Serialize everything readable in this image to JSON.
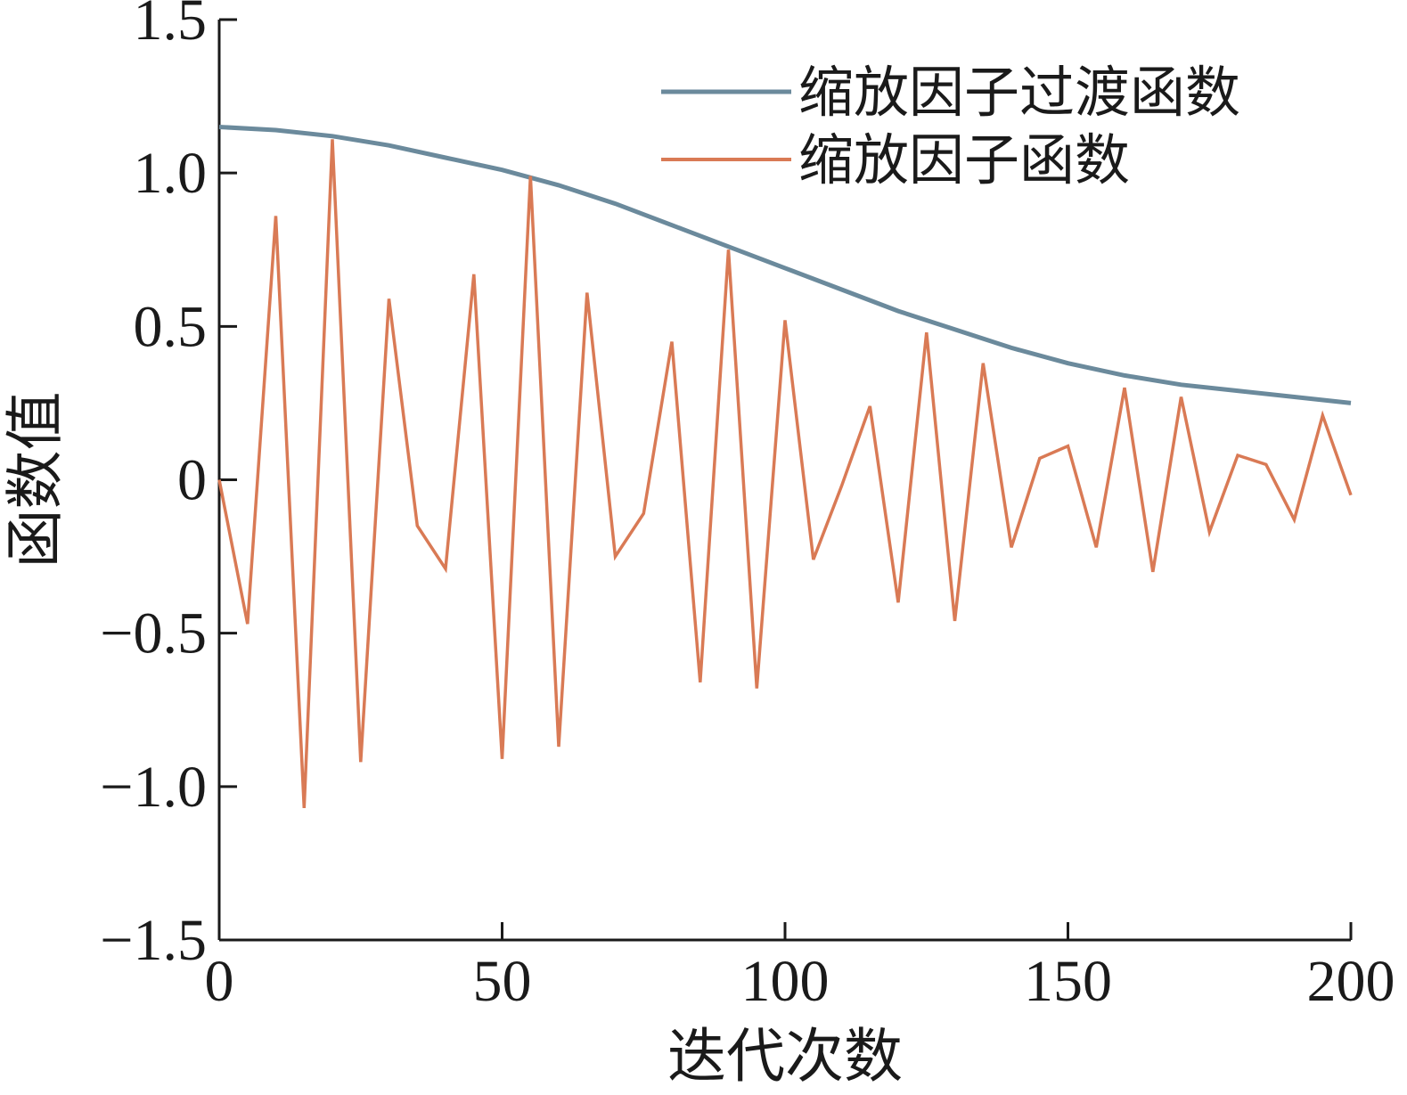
{
  "chart_data": {
    "type": "line",
    "title": "",
    "xlabel": "迭代次数",
    "ylabel": "函数值",
    "xlim": [
      0,
      200
    ],
    "ylim": [
      -1.5,
      1.5
    ],
    "xticks": [
      0,
      50,
      100,
      150,
      200
    ],
    "xtick_labels": [
      "0",
      "50",
      "100",
      "150",
      "200"
    ],
    "yticks": [
      1.5,
      1.0,
      0.5,
      0,
      -0.5,
      -1.0,
      -1.5
    ],
    "ytick_labels": [
      "1.5",
      "1.0",
      "0.5",
      "0",
      "−0.5",
      "−1.0",
      "−1.5"
    ],
    "grid": false,
    "legend_position": "top-right",
    "series": [
      {
        "name": "缩放因子过渡函数",
        "color": "#6b8a9c",
        "x": [
          0,
          10,
          20,
          30,
          40,
          50,
          60,
          70,
          80,
          90,
          100,
          110,
          120,
          130,
          140,
          150,
          160,
          170,
          180,
          190,
          200
        ],
        "y": [
          1.15,
          1.14,
          1.12,
          1.09,
          1.05,
          1.01,
          0.96,
          0.9,
          0.83,
          0.76,
          0.69,
          0.62,
          0.55,
          0.49,
          0.43,
          0.38,
          0.34,
          0.31,
          0.29,
          0.27,
          0.25
        ]
      },
      {
        "name": "缩放因子函数",
        "color": "#d97a55",
        "x": [
          0,
          5,
          10,
          15,
          20,
          25,
          30,
          35,
          40,
          45,
          50,
          55,
          60,
          65,
          70,
          75,
          80,
          85,
          90,
          95,
          100,
          105,
          110,
          115,
          120,
          125,
          130,
          135,
          140,
          145,
          150,
          155,
          160,
          165,
          170,
          175,
          180,
          185,
          190,
          195,
          200
        ],
        "y": [
          0.0,
          -0.47,
          0.86,
          -1.07,
          1.11,
          -0.92,
          0.59,
          -0.15,
          -0.29,
          0.67,
          -0.91,
          0.99,
          -0.87,
          0.61,
          -0.25,
          -0.11,
          0.45,
          -0.66,
          0.75,
          -0.68,
          0.52,
          -0.26,
          -0.02,
          0.24,
          -0.4,
          0.48,
          -0.46,
          0.38,
          -0.22,
          0.07,
          0.11,
          -0.22,
          0.3,
          -0.3,
          0.27,
          -0.17,
          0.08,
          0.05,
          -0.13,
          0.21,
          -0.05
        ]
      }
    ]
  }
}
